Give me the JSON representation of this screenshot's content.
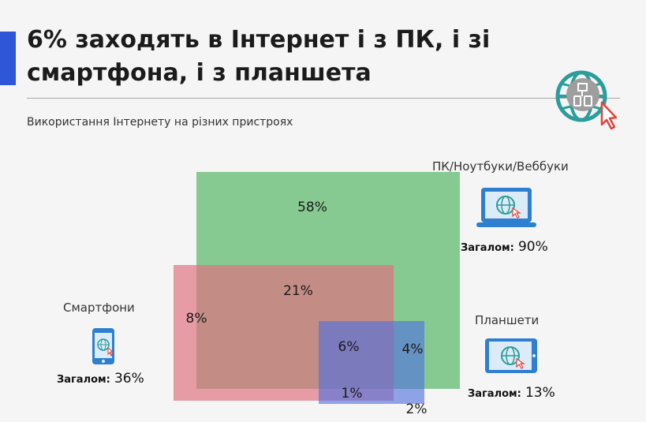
{
  "title_lines": [
    "6% заходять в Інтернет і з ПК, і зі",
    "смартфона, і з планшета"
  ],
  "subtitle": "Використання Інтернету на різних пристроях",
  "colors": {
    "accent": "#2f56d6",
    "pc": "#5cba6c",
    "smartphone": "#e0707f",
    "tablet": "#4f6fe0",
    "icon_blue": "#2f7fd1",
    "cursor": "#e0453a"
  },
  "devices": {
    "pc": {
      "label": "ПК/Ноутбуки/Веббуки",
      "total_label": "Загалом:",
      "total_value": "90%",
      "icon": "laptop-globe-icon"
    },
    "smartphone": {
      "label": "Смартфони",
      "total_label": "Загалом:",
      "total_value": "36%",
      "icon": "phone-globe-icon"
    },
    "tablet": {
      "label": "Планшети",
      "total_label": "Загалом:",
      "total_value": "13%",
      "icon": "tablet-globe-icon"
    }
  },
  "chart_data": {
    "type": "venn",
    "title": "6% заходять в Інтернет і з ПК, і зі смартфона, і з планшета",
    "subtitle": "Використання Інтернету на різних пристроях",
    "sets": [
      {
        "name": "ПК/Ноутбуки/Веббуки",
        "total": 90
      },
      {
        "name": "Смартфони",
        "total": 36
      },
      {
        "name": "Планшети",
        "total": 13
      }
    ],
    "regions": [
      {
        "sets": [
          "ПК/Ноутбуки/Веббуки"
        ],
        "value": 58,
        "label": "58%"
      },
      {
        "sets": [
          "ПК/Ноутбуки/Веббуки",
          "Смартфони"
        ],
        "value": 21,
        "label": "21%"
      },
      {
        "sets": [
          "Смартфони"
        ],
        "value": 8,
        "label": "8%"
      },
      {
        "sets": [
          "ПК/Ноутбуки/Веббуки",
          "Смартфони",
          "Планшети"
        ],
        "value": 6,
        "label": "6%"
      },
      {
        "sets": [
          "ПК/Ноутбуки/Веббуки",
          "Планшети"
        ],
        "value": 4,
        "label": "4%"
      },
      {
        "sets": [
          "Смартфони",
          "Планшети"
        ],
        "value": 1,
        "label": "1%"
      },
      {
        "sets": [
          "Планшети"
        ],
        "value": 2,
        "label": "2%"
      }
    ]
  }
}
